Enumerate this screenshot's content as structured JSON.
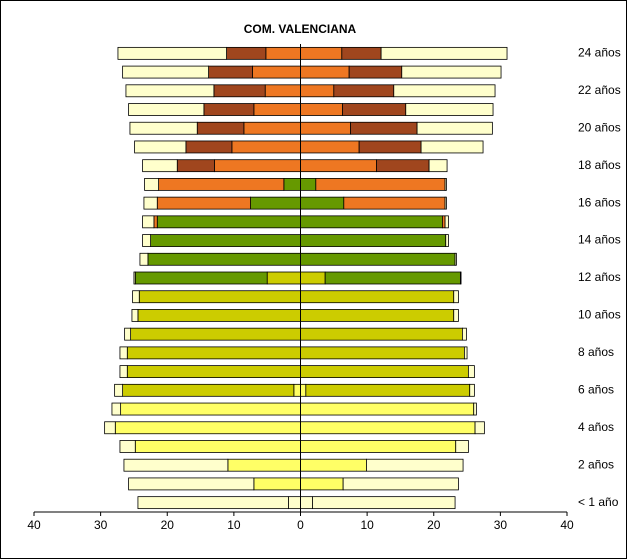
{
  "chart_data": {
    "type": "pyramid",
    "title": "COM. VALENCIANA",
    "categories": [
      "< 1 año",
      null,
      "2 años",
      null,
      "4 años",
      null,
      "6 años",
      null,
      "8 años",
      null,
      "10 años",
      null,
      "12 años",
      null,
      "14 años",
      null,
      "16 años",
      null,
      "18 años",
      null,
      "20 años",
      null,
      "22 años",
      null,
      "24 años"
    ],
    "xlim": [
      -40,
      40
    ],
    "xticks": [
      {
        "value": -40,
        "label": "40"
      },
      {
        "value": -30,
        "label": "30"
      },
      {
        "value": -20,
        "label": "20"
      },
      {
        "value": -10,
        "label": "10"
      },
      0,
      10,
      20,
      30,
      40
    ],
    "series": [
      {
        "color": "#ffffcc",
        "left": [
          1.8,
          0,
          0,
          0,
          0,
          0,
          0,
          0,
          0,
          0,
          0,
          0,
          0,
          0,
          0,
          0,
          0,
          0,
          0,
          0,
          0,
          0,
          0,
          0,
          0
        ],
        "right": [
          1.8,
          0,
          0,
          0,
          0,
          0,
          0,
          0,
          0,
          0,
          0,
          0,
          0,
          0,
          0,
          0,
          0,
          0,
          0,
          0,
          0,
          0,
          0,
          0,
          0
        ]
      },
      {
        "color": "#ffff66",
        "left": [
          0,
          7,
          10.9,
          24.8,
          27.8,
          27,
          1,
          0,
          0,
          0,
          0,
          0,
          0,
          0,
          0,
          0,
          0,
          0,
          0,
          0,
          0,
          0,
          0,
          0,
          0
        ],
        "right": [
          0,
          6.4,
          9.9,
          23.3,
          26.2,
          26,
          0.8,
          0,
          0,
          0,
          0,
          0,
          0,
          0,
          0,
          0,
          0,
          0,
          0,
          0,
          0,
          0,
          0,
          0,
          0
        ]
      },
      {
        "color": "#cccc00",
        "left": [
          0,
          0,
          0,
          0,
          0,
          0,
          25.7,
          26,
          26,
          25.5,
          24.4,
          24.2,
          5,
          0,
          0,
          0,
          0,
          0,
          0,
          0,
          0,
          0,
          0,
          0,
          0
        ],
        "right": [
          0,
          0,
          0,
          0,
          0,
          0,
          24.6,
          25.2,
          24.6,
          24.3,
          23,
          23,
          3.7,
          0,
          0,
          0,
          0,
          0,
          0,
          0,
          0,
          0,
          0,
          0,
          0
        ]
      },
      {
        "color": "#669900",
        "left": [
          0,
          0,
          0,
          0,
          0,
          0,
          0,
          0,
          0,
          0,
          0,
          0,
          19.8,
          22.9,
          22.5,
          21.5,
          7.5,
          2.5,
          0,
          0,
          0,
          0,
          0,
          0,
          0
        ],
        "right": [
          0,
          0,
          0,
          0,
          0,
          0,
          0,
          0,
          0,
          0,
          0,
          0,
          20.3,
          23.2,
          21.8,
          21.3,
          6.5,
          2.3,
          0,
          0,
          0,
          0,
          0,
          0,
          0
        ]
      },
      {
        "color": "#ee7722",
        "left": [
          0,
          0,
          0,
          0,
          0,
          0,
          0,
          0,
          0,
          0,
          0,
          0,
          0,
          0,
          0,
          0.5,
          14,
          18.8,
          12.9,
          10.3,
          8.5,
          7,
          5.3,
          7.2,
          5.2
        ],
        "right": [
          0,
          0,
          0,
          0,
          0,
          0,
          0,
          0,
          0,
          0,
          0,
          0,
          0,
          0,
          0,
          0.4,
          15.2,
          19.4,
          11.4,
          8.8,
          7.5,
          6.3,
          5,
          7.3,
          6.2
        ]
      },
      {
        "color": "#a0461e",
        "left": [
          0,
          0,
          0,
          0,
          0,
          0,
          0,
          0,
          0,
          0,
          0,
          0,
          0,
          0,
          0,
          0,
          0,
          0,
          5.6,
          6.9,
          7,
          7.5,
          7.7,
          6.6,
          5.9
        ],
        "right": [
          0,
          0,
          0,
          0,
          0,
          0,
          0,
          0,
          0,
          0,
          0,
          0,
          0,
          0,
          0,
          0,
          0,
          0,
          7.9,
          9.3,
          10,
          9.5,
          9,
          7.9,
          5.9
        ]
      },
      {
        "color": "#ffffcc",
        "left": [
          22.6,
          18.8,
          15.6,
          2.3,
          1.6,
          1.3,
          1.2,
          1.1,
          1.1,
          0.9,
          0.9,
          1,
          0.2,
          1.2,
          1.2,
          1.7,
          2,
          2.1,
          5.2,
          7.7,
          10.1,
          11.3,
          13.2,
          12.9,
          16.3
        ],
        "right": [
          21.4,
          17.3,
          14.5,
          1.9,
          1.4,
          0.4,
          0.7,
          0.9,
          0.4,
          0.6,
          0.7,
          0.7,
          0.1,
          0.2,
          0.4,
          0.5,
          0.2,
          0.2,
          2.7,
          9.3,
          11.3,
          13.1,
          15.2,
          14.9,
          18.9
        ]
      }
    ]
  }
}
